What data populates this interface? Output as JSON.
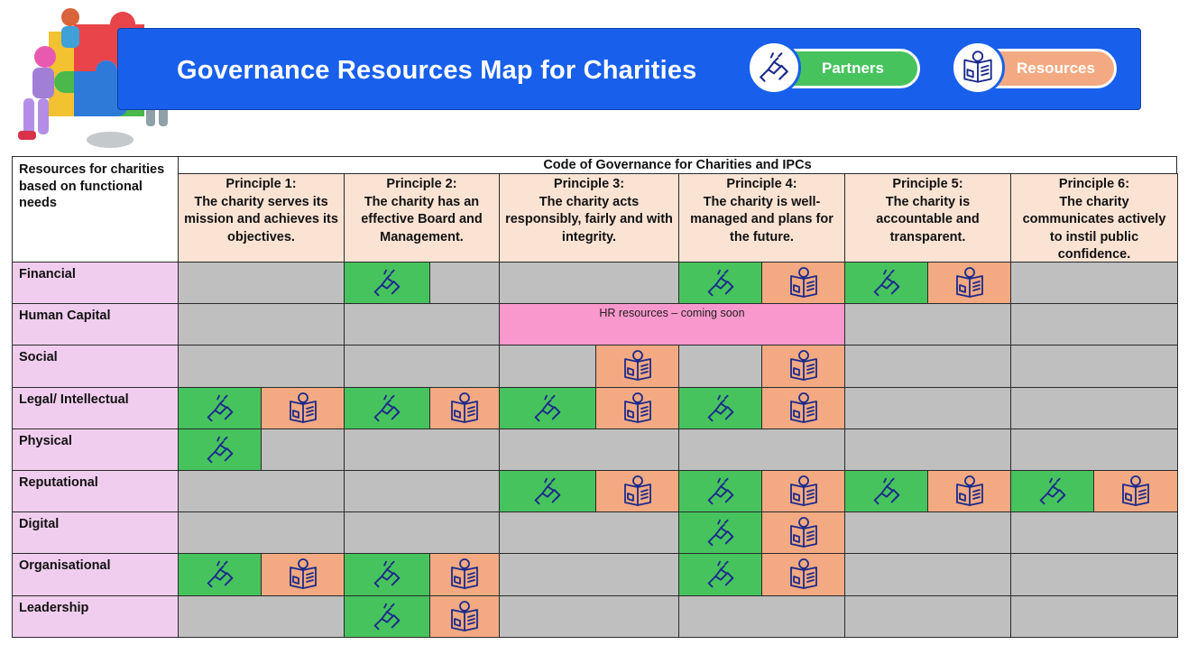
{
  "header": {
    "title": "Governance Resources Map for Charities",
    "legend": [
      {
        "key": "partner",
        "label": "Partners",
        "color": "#46c35d",
        "icon": "handshake-icon"
      },
      {
        "key": "resource",
        "label": "Resources",
        "color": "#f3aa82",
        "icon": "resource-book-icon"
      }
    ]
  },
  "table": {
    "corner_label": "Resources for charities based on functional needs",
    "code_header": "Code of Governance for Charities and IPCs",
    "principles": [
      {
        "title": "Principle 1:",
        "text": "The charity serves its mission and achieves its objectives."
      },
      {
        "title": "Principle 2:",
        "text": "The charity has an effective Board and Management."
      },
      {
        "title": "Principle 3:",
        "text": "The charity acts responsibly, fairly and with integrity."
      },
      {
        "title": "Principle 4:",
        "text": "The charity is well-managed and plans for the future."
      },
      {
        "title": "Principle 5:",
        "text": "The charity is accountable and transparent."
      },
      {
        "title": "Principle 6:",
        "text": "The charity communicates actively to instil public confidence."
      }
    ],
    "rows": [
      {
        "label": "Financial",
        "cells": [
          [
            0,
            0
          ],
          [
            1,
            0
          ],
          [
            0,
            0
          ],
          [
            1,
            1
          ],
          [
            1,
            1
          ],
          [
            0,
            0
          ]
        ]
      },
      {
        "label": "Human Capital",
        "cells": [
          [
            0,
            0
          ],
          [
            0,
            0
          ],
          [
            0,
            0
          ],
          [
            0,
            0
          ],
          [
            0,
            0
          ],
          [
            0,
            0
          ]
        ],
        "banner": {
          "from": 2,
          "to": 3,
          "text": "HR resources – coming soon"
        }
      },
      {
        "label": "Social",
        "cells": [
          [
            0,
            0
          ],
          [
            0,
            0
          ],
          [
            0,
            1
          ],
          [
            0,
            1
          ],
          [
            0,
            0
          ],
          [
            0,
            0
          ]
        ]
      },
      {
        "label": "Legal/ Intellectual",
        "cells": [
          [
            1,
            1
          ],
          [
            1,
            1
          ],
          [
            1,
            1
          ],
          [
            1,
            1
          ],
          [
            0,
            0
          ],
          [
            0,
            0
          ]
        ]
      },
      {
        "label": "Physical",
        "cells": [
          [
            1,
            0
          ],
          [
            0,
            0
          ],
          [
            0,
            0
          ],
          [
            0,
            0
          ],
          [
            0,
            0
          ],
          [
            0,
            0
          ]
        ]
      },
      {
        "label": "Reputational",
        "cells": [
          [
            0,
            0
          ],
          [
            0,
            0
          ],
          [
            1,
            1
          ],
          [
            1,
            1
          ],
          [
            1,
            1
          ],
          [
            1,
            1
          ]
        ]
      },
      {
        "label": "Digital",
        "cells": [
          [
            0,
            0
          ],
          [
            0,
            0
          ],
          [
            0,
            0
          ],
          [
            1,
            1
          ],
          [
            0,
            0
          ],
          [
            0,
            0
          ]
        ]
      },
      {
        "label": "Organisational",
        "cells": [
          [
            1,
            1
          ],
          [
            1,
            1
          ],
          [
            0,
            0
          ],
          [
            1,
            1
          ],
          [
            0,
            0
          ],
          [
            0,
            0
          ]
        ]
      },
      {
        "label": "Leadership",
        "cells": [
          [
            0,
            0
          ],
          [
            1,
            1
          ],
          [
            0,
            0
          ],
          [
            0,
            0
          ],
          [
            0,
            0
          ],
          [
            0,
            0
          ]
        ]
      }
    ]
  },
  "colors": {
    "banner": "#1860ec",
    "row_label": "#f0cdee",
    "principle_header": "#fbe3d4",
    "empty": "#bfbfbf",
    "coming_soon": "#f998cd",
    "icon_stroke": "#1c2a8c"
  }
}
